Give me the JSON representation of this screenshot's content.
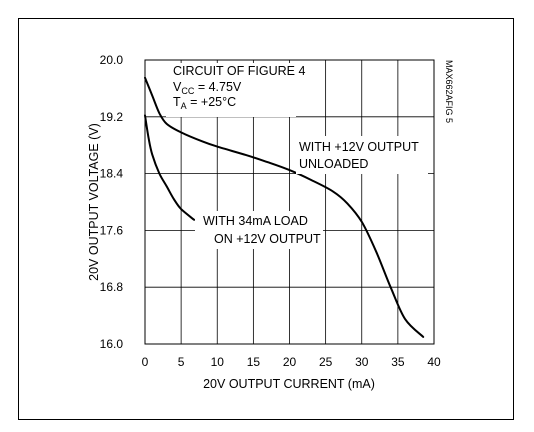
{
  "chart_data": {
    "type": "line",
    "title": "",
    "xlabel": "20V OUTPUT CURRENT (mA)",
    "ylabel": "20V OUTPUT VOLTAGE (V)",
    "xlim": [
      0,
      40
    ],
    "ylim": [
      16.0,
      20.0
    ],
    "x_ticks": [
      0,
      5,
      10,
      15,
      20,
      25,
      30,
      35,
      40
    ],
    "y_ticks": [
      16.0,
      16.8,
      17.6,
      18.4,
      19.2,
      20.0
    ],
    "x_tick_labels": [
      "0",
      "5",
      "10",
      "15",
      "20",
      "25",
      "30",
      "35",
      "40"
    ],
    "y_tick_labels": [
      "16.0",
      "16.8",
      "17.6",
      "18.4",
      "19.2",
      "20.0"
    ],
    "grid": true,
    "figure_code": "MAX662AFIG 5",
    "conditions": {
      "line1": "CIRCUIT OF FIGURE 4",
      "vcc_main": "V",
      "vcc_sub": "CC",
      "vcc_value": " = 4.75V",
      "ta_main": "T",
      "ta_sub": "A",
      "ta_value": " = +25°C"
    },
    "series": [
      {
        "label_lines": [
          "WITH +12V OUTPUT",
          "UNLOADED"
        ],
        "x": [
          0,
          1,
          2,
          3,
          5,
          8,
          10,
          14,
          17,
          20,
          23,
          26,
          28,
          30,
          32,
          34,
          36,
          38.5
        ],
        "y": [
          19.75,
          19.5,
          19.25,
          19.1,
          18.98,
          18.85,
          18.78,
          18.66,
          18.56,
          18.45,
          18.31,
          18.15,
          17.98,
          17.72,
          17.3,
          16.8,
          16.35,
          16.1
        ]
      },
      {
        "label_lines": [
          "WITH 34mA LOAD",
          "ON +12V OUTPUT"
        ],
        "x": [
          0,
          0.5,
          1,
          2,
          3,
          4,
          5,
          6.8
        ],
        "y": [
          19.22,
          18.9,
          18.67,
          18.4,
          18.22,
          18.04,
          17.9,
          17.75
        ]
      }
    ]
  }
}
